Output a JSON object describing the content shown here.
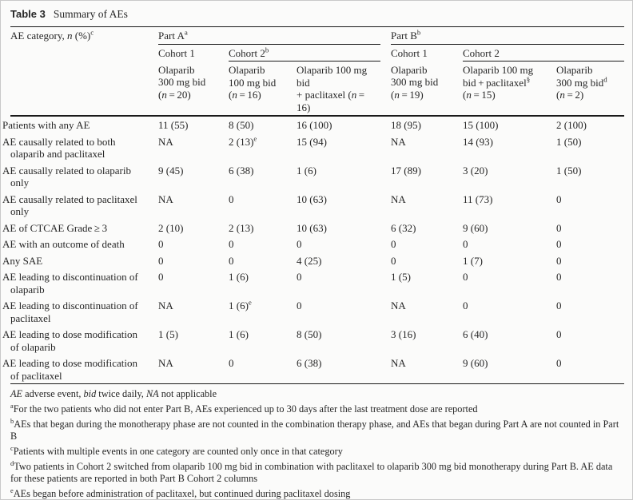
{
  "page": {
    "title_label": "Table 3",
    "title_text": "Summary of AEs"
  },
  "table": {
    "stub_header": "AE category, *n* (%)^{c}",
    "part_a": {
      "label": "Part A^{a}",
      "cohort1": "Cohort 1",
      "cohort2": "Cohort 2^{b}"
    },
    "part_b": {
      "label": "Part B^{b}",
      "cohort1": "Cohort 1",
      "cohort2": "Cohort 2"
    },
    "columns": [
      "Olaparib\n300 mg bid\n(*n* = 20)",
      "Olaparib\n100 mg bid\n(*n* = 16)",
      "Olaparib 100 mg bid\n+ paclitaxel (*n* = 16)",
      "Olaparib\n300 mg bid\n(*n* = 19)",
      "Olaparib 100 mg\nbid + paclitaxel^{§}\n(*n* = 15)",
      "Olaparib\n300 mg bid^{d}\n(*n* = 2)"
    ],
    "rows": [
      {
        "label": "Patients with any AE",
        "values": [
          "11 (55)",
          "8 (50)",
          "16 (100)",
          "18 (95)",
          "15 (100)",
          "2 (100)"
        ]
      },
      {
        "label": "AE causally related to both\nolaparib and paclitaxel",
        "values": [
          "NA",
          "2 (13)^{e}",
          "15 (94)",
          "NA",
          "14 (93)",
          "1 (50)"
        ]
      },
      {
        "label": "AE causally related to olaparib\nonly",
        "values": [
          "9 (45)",
          "6 (38)",
          "1 (6)",
          "17 (89)",
          "3 (20)",
          "1 (50)"
        ]
      },
      {
        "label": "AE causally related to paclitaxel\nonly",
        "values": [
          "NA",
          "0",
          "10 (63)",
          "NA",
          "11 (73)",
          "0"
        ]
      },
      {
        "label": "AE of CTCAE Grade ≥ 3",
        "values": [
          "2 (10)",
          "2 (13)",
          "10 (63)",
          "6 (32)",
          "9 (60)",
          "0"
        ]
      },
      {
        "label": "AE with an outcome of death",
        "values": [
          "0",
          "0",
          "0",
          "0",
          "0",
          "0"
        ]
      },
      {
        "label": "Any SAE",
        "values": [
          "0",
          "0",
          "4 (25)",
          "0",
          "1 (7)",
          "0"
        ]
      },
      {
        "label": "AE leading to discontinuation of\nolaparib",
        "values": [
          "0",
          "1 (6)",
          "0",
          "1 (5)",
          "0",
          "0"
        ]
      },
      {
        "label": "AE leading to discontinuation of\npaclitaxel",
        "values": [
          "NA",
          "1 (6)^{e}",
          "0",
          "NA",
          "0",
          "0"
        ]
      },
      {
        "label": "AE leading to dose modification\nof olaparib",
        "values": [
          "1 (5)",
          "1 (6)",
          "8 (50)",
          "3 (16)",
          "6 (40)",
          "0"
        ]
      },
      {
        "label": "AE leading to dose modification\nof paclitaxel",
        "values": [
          "NA",
          "0",
          "6 (38)",
          "NA",
          "9 (60)",
          "0"
        ]
      }
    ]
  },
  "footnotes": [
    "*AE* adverse event, *bid* twice daily, *NA* not applicable",
    "^{a}For the two patients who did not enter Part B, AEs experienced up to 30 days after the last treatment dose are reported",
    "^{b}AEs that began during the monotherapy phase are not counted in the combination therapy phase, and AEs that began during Part A are not counted in Part B",
    "^{c}Patients with multiple events in one category are counted only once in that category",
    "^{d}Two patients in Cohort 2 switched from olaparib 100 mg bid in combination with paclitaxel to olaparib 300 mg bid monotherapy during Part B. AE data for these patients are reported in both Part B Cohort 2 columns",
    "^{e}AEs began before administration of paclitaxel, but continued during paclitaxel dosing"
  ],
  "colors": {
    "text": "#262626",
    "rule": "#1a1a1a",
    "background": "#fbfbfa",
    "frame": "#c9c9c9"
  }
}
